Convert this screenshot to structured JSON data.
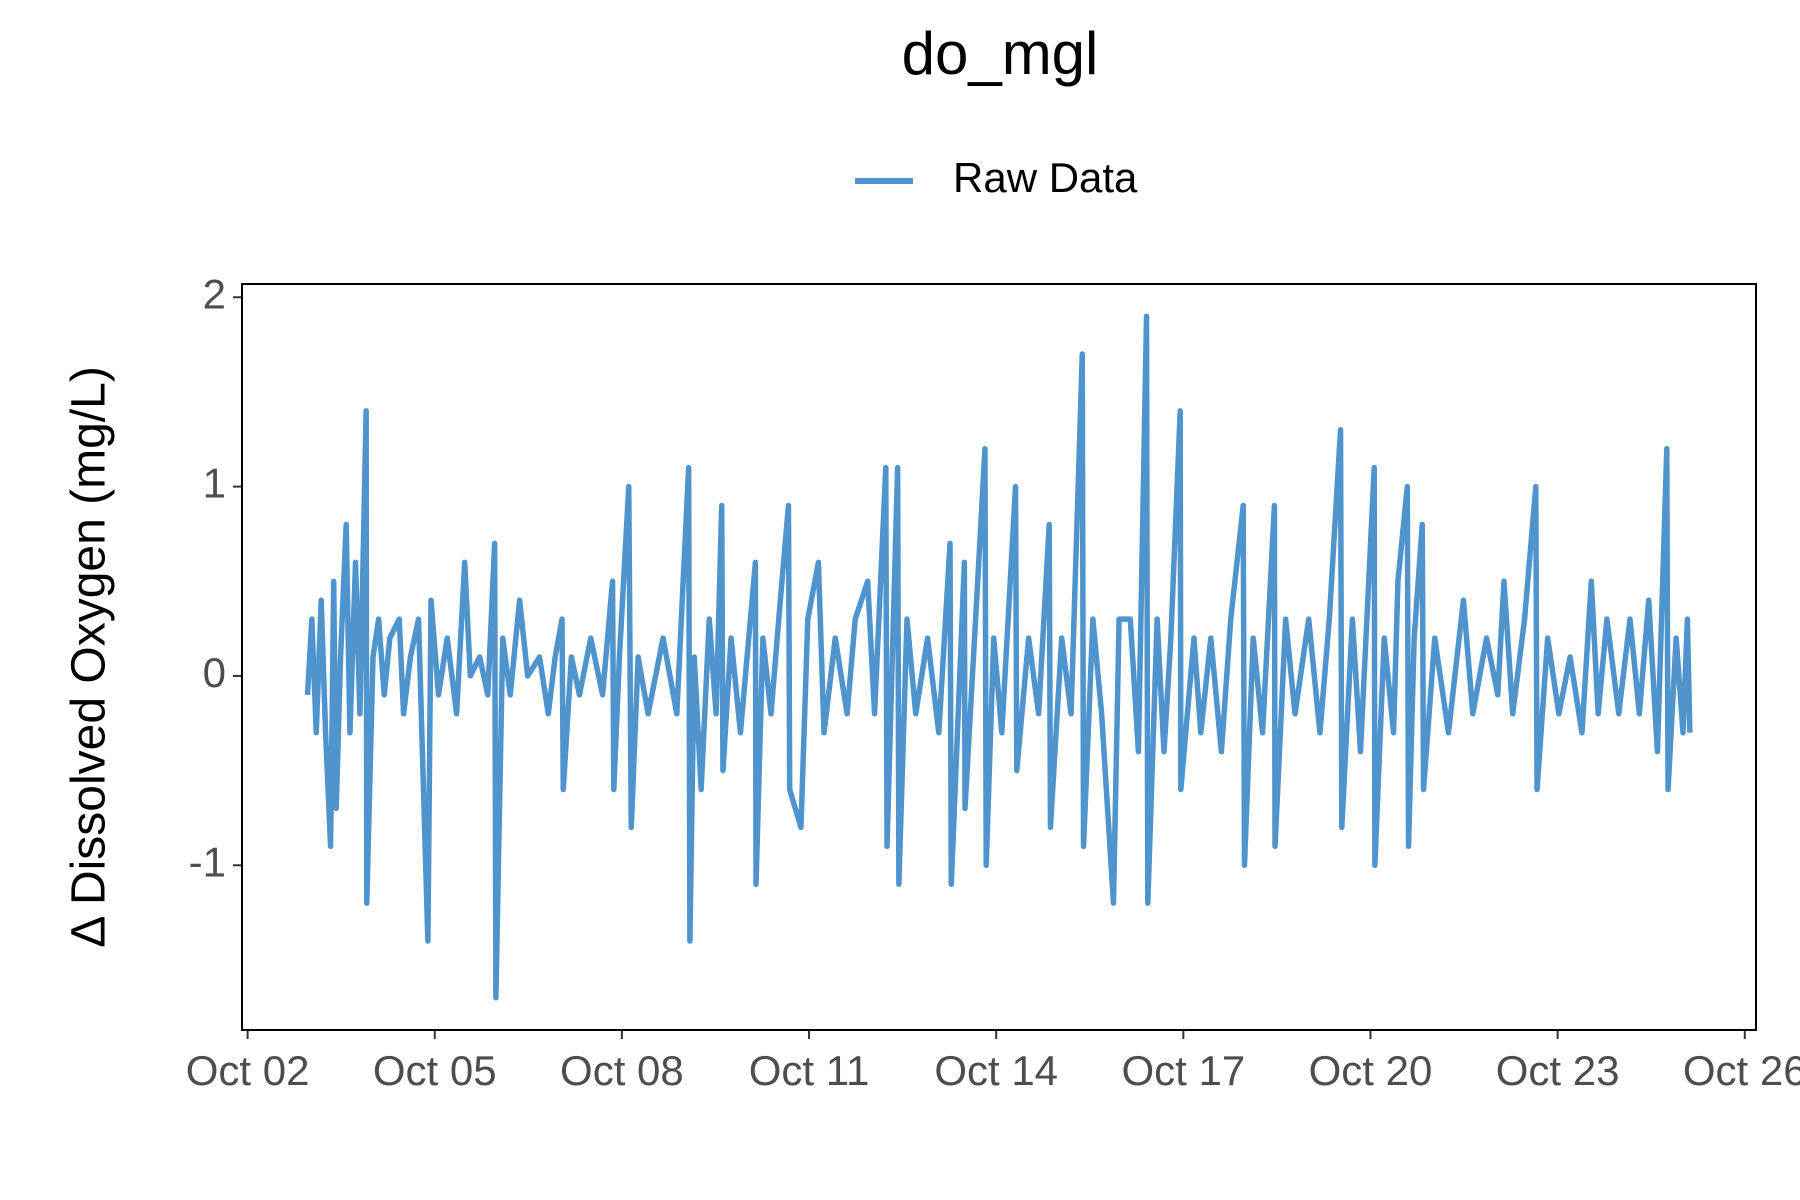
{
  "chart_data": {
    "type": "line",
    "title": "do_mgl",
    "y_label": "Δ Dissolved Oxygen (mg/L)",
    "legend": "top",
    "xlim": [
      1.91,
      26.18
    ],
    "ylim": [
      -1.87,
      2.07
    ],
    "xticks": [
      {
        "value": 2,
        "label": "Oct 02"
      },
      {
        "value": 5,
        "label": "Oct 05"
      },
      {
        "value": 8,
        "label": "Oct 08"
      },
      {
        "value": 11,
        "label": "Oct 11"
      },
      {
        "value": 14,
        "label": "Oct 14"
      },
      {
        "value": 17,
        "label": "Oct 17"
      },
      {
        "value": 20,
        "label": "Oct 20"
      },
      {
        "value": 23,
        "label": "Oct 23"
      },
      {
        "value": 26,
        "label": "Oct 26"
      }
    ],
    "yticks": [
      -1,
      0,
      1,
      2
    ],
    "x": [
      2.96,
      3.03,
      3.1,
      3.18,
      3.25,
      3.33,
      3.38,
      3.42,
      3.49,
      3.58,
      3.64,
      3.73,
      3.8,
      3.9,
      3.91,
      4.01,
      4.1,
      4.19,
      4.28,
      4.43,
      4.5,
      4.61,
      4.74,
      4.89,
      4.94,
      5.06,
      5.2,
      5.35,
      5.48,
      5.57,
      5.72,
      5.85,
      5.96,
      5.98,
      6.09,
      6.21,
      6.36,
      6.49,
      6.68,
      6.82,
      6.93,
      7.04,
      7.06,
      7.19,
      7.32,
      7.5,
      7.69,
      7.85,
      7.87,
      7.96,
      8.11,
      8.15,
      8.26,
      8.42,
      8.66,
      8.88,
      9.07,
      9.09,
      9.16,
      9.27,
      9.4,
      9.51,
      9.6,
      9.62,
      9.75,
      9.9,
      10.14,
      10.15,
      10.26,
      10.39,
      10.54,
      10.67,
      10.69,
      10.87,
      10.98,
      11.15,
      11.24,
      11.42,
      11.61,
      11.74,
      11.94,
      12.05,
      12.23,
      12.25,
      12.42,
      12.44,
      12.57,
      12.71,
      12.9,
      13.08,
      13.26,
      13.28,
      13.49,
      13.5,
      13.67,
      13.82,
      13.84,
      13.96,
      14.09,
      14.31,
      14.33,
      14.52,
      14.68,
      14.85,
      14.87,
      15.05,
      15.2,
      15.38,
      15.4,
      15.55,
      15.69,
      15.88,
      15.97,
      16.15,
      16.28,
      16.41,
      16.43,
      16.58,
      16.69,
      16.8,
      16.95,
      16.96,
      17.17,
      17.28,
      17.44,
      17.61,
      17.76,
      17.96,
      17.98,
      18.12,
      18.27,
      18.46,
      18.47,
      18.64,
      18.79,
      19.01,
      19.19,
      19.34,
      19.52,
      19.54,
      19.71,
      19.84,
      20.06,
      20.07,
      20.22,
      20.37,
      20.44,
      20.59,
      20.61,
      20.7,
      20.83,
      20.85,
      21.03,
      21.25,
      21.49,
      21.64,
      21.86,
      22.04,
      22.14,
      22.28,
      22.47,
      22.65,
      22.67,
      22.84,
      23.02,
      23.2,
      23.39,
      23.54,
      23.65,
      23.79,
      23.98,
      24.16,
      24.31,
      24.46,
      24.6,
      24.75,
      24.77,
      24.9,
      25.01,
      25.08,
      25.12
    ],
    "series": [
      {
        "name": "Raw Data",
        "color": "#4f94cd",
        "values": [
          -0.1,
          0.3,
          -0.3,
          0.4,
          -0.3,
          -0.9,
          0.5,
          -0.7,
          0.1,
          0.8,
          -0.3,
          0.6,
          -0.2,
          1.4,
          -1.2,
          0.1,
          0.3,
          -0.1,
          0.2,
          0.3,
          -0.2,
          0.1,
          0.3,
          -1.4,
          0.4,
          -0.1,
          0.2,
          -0.2,
          0.6,
          0,
          0.1,
          -0.1,
          0.7,
          -1.7,
          0.2,
          -0.1,
          0.4,
          0,
          0.1,
          -0.2,
          0.1,
          0.3,
          -0.6,
          0.1,
          -0.1,
          0.2,
          -0.1,
          0.5,
          -0.6,
          0.1,
          1.0,
          -0.8,
          0.1,
          -0.2,
          0.2,
          -0.2,
          1.1,
          -1.4,
          0.1,
          -0.6,
          0.3,
          -0.2,
          0.9,
          -0.5,
          0.2,
          -0.3,
          0.6,
          -1.1,
          0.2,
          -0.2,
          0.4,
          0.9,
          -0.6,
          -0.8,
          0.3,
          0.6,
          -0.3,
          0.2,
          -0.2,
          0.3,
          0.5,
          -0.2,
          1.1,
          -0.9,
          1.1,
          -1.1,
          0.3,
          -0.2,
          0.2,
          -0.3,
          0.7,
          -1.1,
          0.6,
          -0.7,
          0.3,
          1.2,
          -1.0,
          0.2,
          -0.3,
          1.0,
          -0.5,
          0.2,
          -0.2,
          0.8,
          -0.8,
          0.2,
          -0.2,
          1.7,
          -0.9,
          0.3,
          -0.2,
          -1.2,
          0.3,
          0.3,
          -0.4,
          1.9,
          -1.2,
          0.3,
          -0.4,
          0.2,
          1.4,
          -0.6,
          0.2,
          -0.3,
          0.2,
          -0.4,
          0.3,
          0.9,
          -1.0,
          0.2,
          -0.3,
          0.9,
          -0.9,
          0.3,
          -0.2,
          0.3,
          -0.3,
          0.3,
          1.3,
          -0.8,
          0.3,
          -0.4,
          1.1,
          -1.0,
          0.2,
          -0.3,
          0.5,
          1.0,
          -0.9,
          0.2,
          0.8,
          -0.6,
          0.2,
          -0.3,
          0.4,
          -0.2,
          0.2,
          -0.1,
          0.5,
          -0.2,
          0.3,
          1.0,
          -0.6,
          0.2,
          -0.2,
          0.1,
          -0.3,
          0.5,
          -0.2,
          0.3,
          -0.2,
          0.3,
          -0.2,
          0.4,
          -0.4,
          1.2,
          -0.6,
          0.2,
          -0.3,
          0.3,
          -0.3
        ]
      }
    ]
  }
}
